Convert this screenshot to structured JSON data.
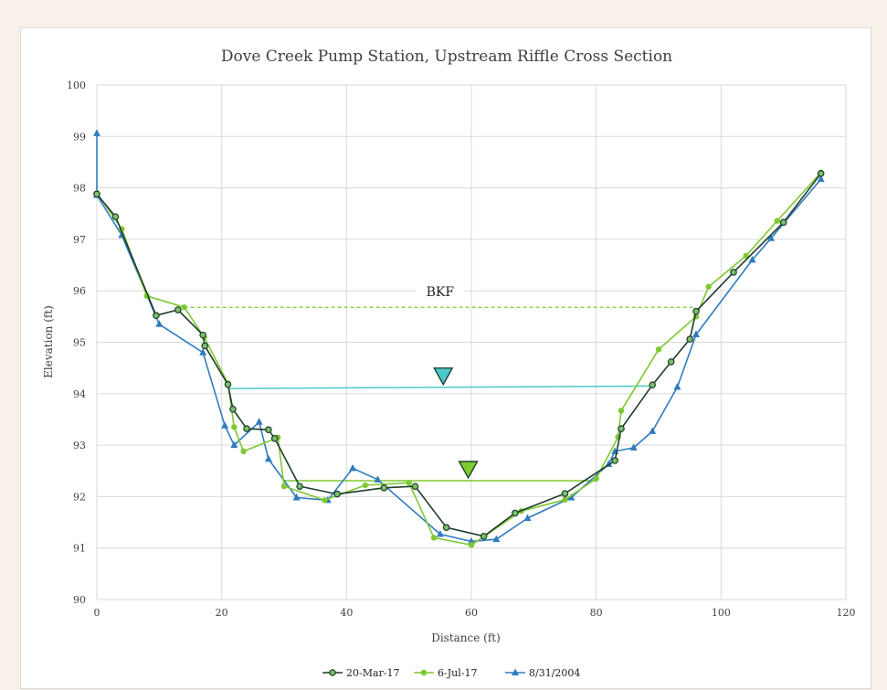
{
  "chart_data": {
    "type": "line",
    "title": "Dove Creek Pump Station, Upstream Riffle Cross Section",
    "xlabel": "Distance (ft)",
    "ylabel": "Elevation (ft)",
    "xlim": [
      0,
      120
    ],
    "ylim": [
      90,
      100
    ],
    "xticks": [
      0,
      20,
      40,
      60,
      80,
      100,
      120
    ],
    "yticks": [
      90,
      91,
      92,
      93,
      94,
      95,
      96,
      97,
      98,
      99,
      100
    ],
    "grid": true,
    "legend_position": "bottom",
    "series": [
      {
        "name": "20-Mar-17",
        "color": "#1f3d2b",
        "fill": "#7bbf6a",
        "marker": "circle",
        "points": [
          [
            0,
            97.88
          ],
          [
            3,
            97.44
          ],
          [
            9.5,
            95.52
          ],
          [
            13,
            95.63
          ],
          [
            17,
            95.14
          ],
          [
            17.3,
            94.93
          ],
          [
            21,
            94.18
          ],
          [
            21.8,
            93.7
          ],
          [
            24,
            93.32
          ],
          [
            27.5,
            93.3
          ],
          [
            28.5,
            93.13
          ],
          [
            32.5,
            92.2
          ],
          [
            38.5,
            92.05
          ],
          [
            46,
            92.17
          ],
          [
            51,
            92.2
          ],
          [
            56,
            91.4
          ],
          [
            62,
            91.23
          ],
          [
            67,
            91.68
          ],
          [
            75,
            92.06
          ],
          [
            83,
            92.7
          ],
          [
            84,
            93.32
          ],
          [
            89,
            94.17
          ],
          [
            92,
            94.62
          ],
          [
            95,
            95.06
          ],
          [
            96,
            95.6
          ],
          [
            102,
            96.36
          ],
          [
            110,
            97.33
          ],
          [
            116,
            98.28
          ]
        ]
      },
      {
        "name": "6-Jul-17",
        "color": "#7ec832",
        "fill": "#7ec832",
        "marker": "circle",
        "points": [
          [
            0,
            97.9
          ],
          [
            4,
            97.2
          ],
          [
            8,
            95.9
          ],
          [
            14,
            95.68
          ],
          [
            17.2,
            95.1
          ],
          [
            21,
            94.2
          ],
          [
            22,
            93.35
          ],
          [
            23.5,
            92.88
          ],
          [
            29,
            93.15
          ],
          [
            30,
            92.2
          ],
          [
            36.5,
            91.93
          ],
          [
            43,
            92.22
          ],
          [
            50,
            92.27
          ],
          [
            54,
            91.2
          ],
          [
            60,
            91.06
          ],
          [
            68,
            91.72
          ],
          [
            75,
            91.94
          ],
          [
            80,
            92.35
          ],
          [
            83.5,
            93.16
          ],
          [
            84,
            93.67
          ],
          [
            90,
            94.86
          ],
          [
            96,
            95.5
          ],
          [
            98,
            96.08
          ],
          [
            104,
            96.68
          ],
          [
            109,
            97.36
          ],
          [
            116,
            98.3
          ]
        ]
      },
      {
        "name": "8/31/2004",
        "color": "#2e7bc0",
        "fill": "#2e7bc0",
        "marker": "triangle",
        "points": [
          [
            0,
            99.06
          ],
          [
            0,
            97.86
          ],
          [
            4,
            97.08
          ],
          [
            10,
            95.35
          ],
          [
            17,
            94.8
          ],
          [
            20.5,
            93.38
          ],
          [
            22,
            93.0
          ],
          [
            26,
            93.45
          ],
          [
            27.5,
            92.73
          ],
          [
            32,
            91.98
          ],
          [
            37,
            91.93
          ],
          [
            41,
            92.55
          ],
          [
            45,
            92.33
          ],
          [
            55,
            91.27
          ],
          [
            60,
            91.13
          ],
          [
            64,
            91.17
          ],
          [
            69,
            91.58
          ],
          [
            76,
            91.98
          ],
          [
            82,
            92.63
          ],
          [
            83,
            92.88
          ],
          [
            86,
            92.95
          ],
          [
            89,
            93.27
          ],
          [
            93,
            94.13
          ],
          [
            96,
            95.15
          ],
          [
            105,
            96.6
          ],
          [
            108,
            97.02
          ],
          [
            116,
            98.17
          ]
        ]
      }
    ],
    "annotations": [
      {
        "label": "BKF",
        "type": "dashed-line",
        "color": "#7ec832",
        "x": [
          14,
          96
        ],
        "y": 95.68,
        "label_x": 55
      },
      {
        "label": "",
        "type": "water-surface",
        "color": "#4bc8c8",
        "x": [
          21,
          89
        ],
        "y": [
          94.1,
          94.15
        ],
        "marker_x": 55.5
      },
      {
        "label": "",
        "type": "water-surface",
        "color": "#7ec832",
        "x": [
          30,
          80
        ],
        "y": 92.31,
        "marker_x": 59.5
      }
    ]
  }
}
